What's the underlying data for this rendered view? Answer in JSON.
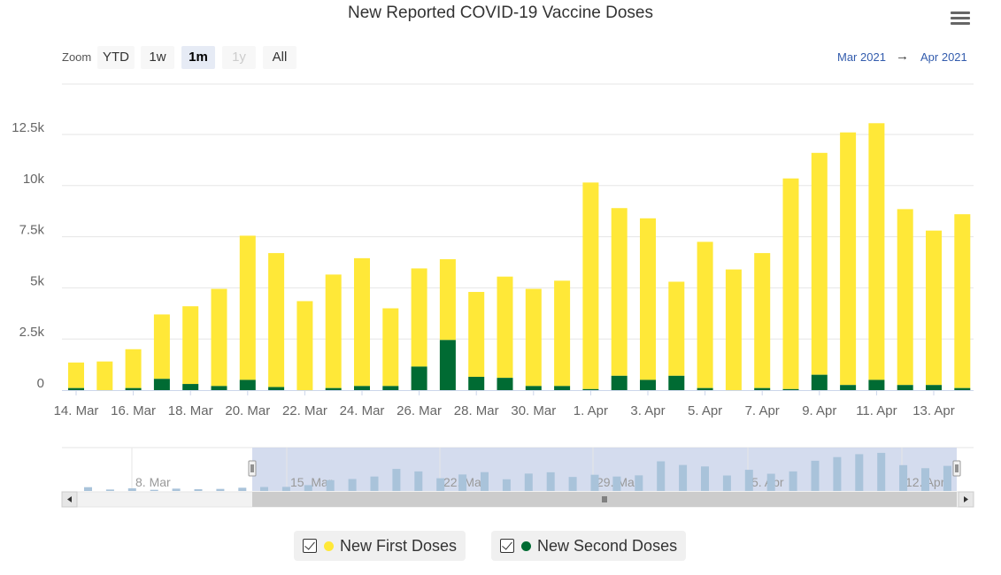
{
  "chart_data": {
    "type": "bar",
    "stacked": true,
    "title": "New Reported COVID-19 Vaccine Doses",
    "xlabel": "",
    "ylabel": "",
    "ylim": [
      0,
      15000
    ],
    "y_ticks": [
      0,
      2500,
      5000,
      7500,
      10000,
      12500
    ],
    "y_tick_labels": [
      "0",
      "2.5k",
      "5k",
      "7.5k",
      "10k",
      "12.5k"
    ],
    "x_tick_labels": [
      "14. Mar",
      "16. Mar",
      "18. Mar",
      "20. Mar",
      "22. Mar",
      "24. Mar",
      "26. Mar",
      "28. Mar",
      "30. Mar",
      "1. Apr",
      "3. Apr",
      "5. Apr",
      "7. Apr",
      "9. Apr",
      "11. Apr",
      "13. Apr"
    ],
    "categories": [
      "14. Mar",
      "15. Mar",
      "16. Mar",
      "17. Mar",
      "18. Mar",
      "19. Mar",
      "20. Mar",
      "21. Mar",
      "22. Mar",
      "23. Mar",
      "24. Mar",
      "25. Mar",
      "26. Mar",
      "27. Mar",
      "28. Mar",
      "29. Mar",
      "30. Mar",
      "31. Mar",
      "1. Apr",
      "2. Apr",
      "3. Apr",
      "4. Apr",
      "5. Apr",
      "6. Apr",
      "7. Apr",
      "8. Apr",
      "9. Apr",
      "10. Apr",
      "11. Apr",
      "12. Apr",
      "13. Apr",
      "14. Apr"
    ],
    "series": [
      {
        "name": "New Second Doses",
        "color": "#006b33",
        "values": [
          100,
          0,
          100,
          550,
          300,
          200,
          500,
          150,
          0,
          100,
          200,
          200,
          1150,
          2450,
          650,
          600,
          200,
          200,
          50,
          700,
          500,
          700,
          100,
          0,
          100,
          50,
          750,
          250,
          500,
          250,
          250,
          100
        ]
      },
      {
        "name": "New First Doses",
        "color": "#ffe838",
        "values": [
          1250,
          1400,
          1900,
          3150,
          3800,
          4750,
          7050,
          6550,
          4350,
          5550,
          6250,
          3800,
          4800,
          3950,
          4150,
          4950,
          4750,
          5150,
          10100,
          8200,
          7900,
          4600,
          7150,
          5900,
          6600,
          10300,
          10850,
          12350,
          12550,
          8600,
          7550,
          8500
        ]
      }
    ],
    "navigator": {
      "labels": [
        "8. Mar",
        "15. Mar",
        "22. Mar",
        "29. Mar",
        "5. Apr",
        "12. Apr"
      ],
      "pre_values": [
        1300,
        500,
        900,
        400,
        800,
        600,
        700,
        1100
      ]
    },
    "legend_position": "bottom-center"
  },
  "toolbar": {
    "zoom_label": "Zoom",
    "buttons": [
      "YTD",
      "1w",
      "1m",
      "1y",
      "All"
    ],
    "active": "1m",
    "disabled": "1y",
    "range_from": "Mar 2021",
    "range_arrow": "→",
    "range_to": "Apr 2021"
  },
  "legend": {
    "first_label": "New First Doses",
    "second_label": "New Second Doses"
  },
  "colors": {
    "first": "#ffe838",
    "second": "#006b33",
    "navigator_bar": "#a9c3da",
    "navigator_mask": "#ccd6eb"
  }
}
